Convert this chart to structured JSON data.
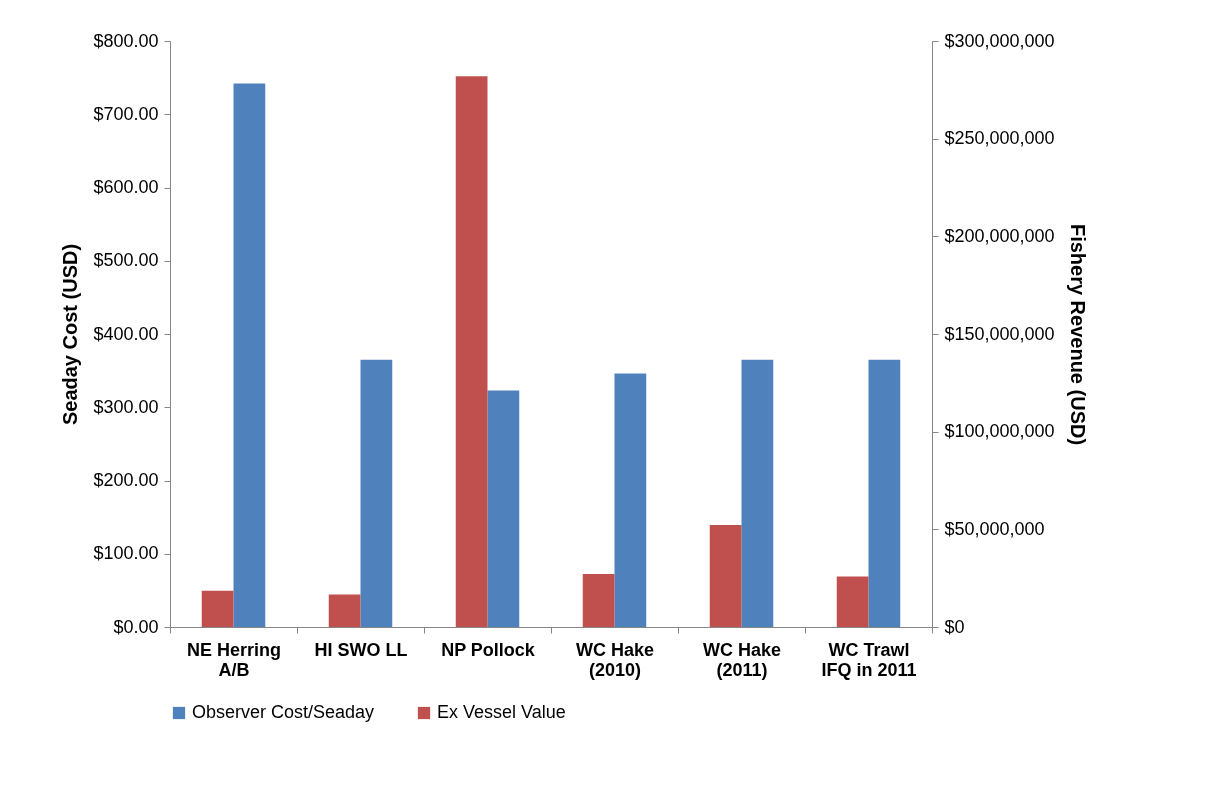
{
  "chart_data": {
    "type": "bar",
    "ylabel": "Seaday Cost (USD)",
    "y2label": "Fishery Revenue (USD)",
    "categories": [
      "NE Herring A/B",
      "HI SWO LL",
      "NP Pollock",
      "WC Hake (2010)",
      "WC Hake (2011)",
      "WC Trawl IFQ in 2011"
    ],
    "series": [
      {
        "name": "Observer Cost/Seaday",
        "color": "#4f81bd",
        "values": [
          742,
          365,
          323,
          346,
          365,
          365
        ]
      },
      {
        "name": "Ex Vessel Value",
        "color": "#c0504d",
        "axis": "y2",
        "values": [
          18500000,
          16700000,
          282000000,
          27100000,
          52200000,
          25900000
        ]
      }
    ],
    "ylim": [
      0,
      800
    ],
    "yticks": [
      {
        "value": 0,
        "label": "$0.00"
      },
      {
        "value": 100,
        "label": "$100.00"
      },
      {
        "value": 200,
        "label": "$200.00"
      },
      {
        "value": 300,
        "label": "$300.00"
      },
      {
        "value": 400,
        "label": "$400.00"
      },
      {
        "value": 500,
        "label": "$500.00"
      },
      {
        "value": 600,
        "label": "$600.00"
      },
      {
        "value": 700,
        "label": "$700.00"
      },
      {
        "value": 800,
        "label": "$800.00"
      }
    ],
    "y2lim": [
      0,
      300000000
    ],
    "y2ticks": [
      {
        "value": 0,
        "label": "$0"
      },
      {
        "value": 50000000,
        "label": "$50,000,000"
      },
      {
        "value": 100000000,
        "label": "$100,000,000"
      },
      {
        "value": 150000000,
        "label": "$150,000,000"
      },
      {
        "value": 200000000,
        "label": "$200,000,000"
      },
      {
        "value": 250000000,
        "label": "$250,000,000"
      },
      {
        "value": 300000000,
        "label": "$300,000,000"
      }
    ],
    "legend": "bottom",
    "grid": false
  }
}
